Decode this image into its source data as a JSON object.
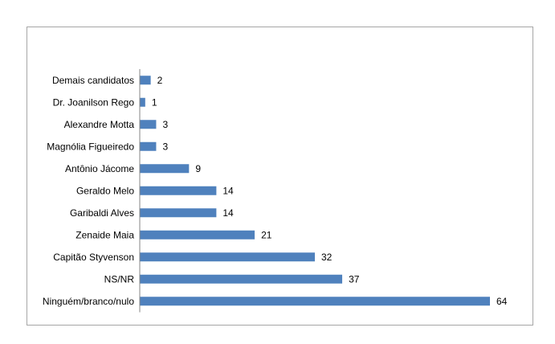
{
  "chart_data": {
    "type": "bar",
    "orientation": "horizontal",
    "categories": [
      "Demais candidatos",
      "Dr. Joanilson Rego",
      "Alexandre Motta",
      "Magnólia Figueiredo",
      "Antônio Jácome",
      "Geraldo Melo",
      "Garibaldi Alves",
      "Zenaide Maia",
      "Capitão Styvenson",
      "NS/NR",
      "Ninguém/branco/nulo"
    ],
    "values": [
      2,
      1,
      3,
      3,
      9,
      14,
      14,
      21,
      32,
      37,
      64
    ],
    "xlim": [
      0,
      64
    ],
    "bar_color": "#4f81bd",
    "axis_color": "#868686",
    "grid": false,
    "legend": "none",
    "data_labels": true
  }
}
